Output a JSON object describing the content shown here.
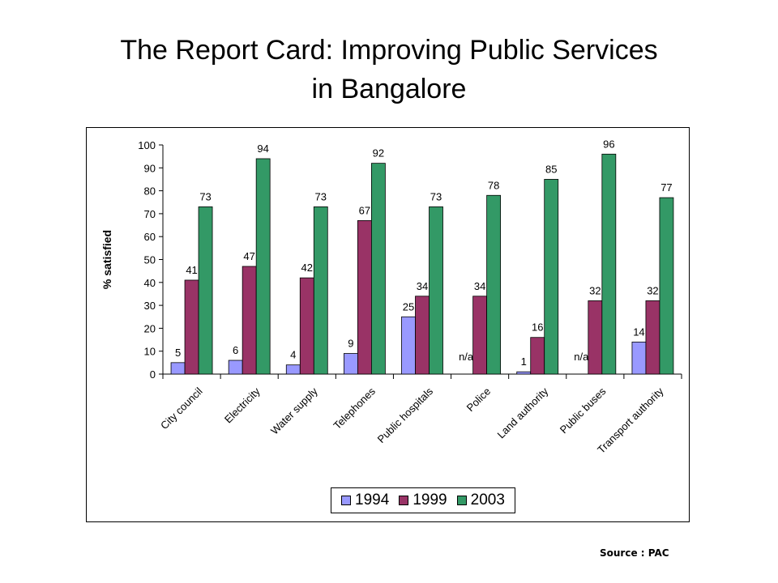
{
  "slide": {
    "title_line1": "The Report Card:  Improving Public Services",
    "title_line2": "in Bangalore",
    "source": "Source : PAC"
  },
  "chart_data": {
    "type": "bar",
    "ylabel": "% satisfied",
    "xlabel": "",
    "ylim": [
      0,
      100
    ],
    "yticks": [
      0,
      10,
      20,
      30,
      40,
      50,
      60,
      70,
      80,
      90,
      100
    ],
    "grid": false,
    "legend_position": "bottom",
    "categories": [
      "City council",
      "Electricity",
      "Water supply",
      "Telephones",
      "Public hospitals",
      "Police",
      "Land authority",
      "Public buses",
      "Transport authority"
    ],
    "series": [
      {
        "name": "1994",
        "color": "#9999ff",
        "values": [
          5,
          6,
          4,
          9,
          25,
          null,
          1,
          null,
          14
        ],
        "labels": [
          "5",
          "6",
          "4",
          "9",
          "25",
          "n/a",
          "1",
          "n/a",
          "14"
        ]
      },
      {
        "name": "1999",
        "color": "#993366",
        "values": [
          41,
          47,
          42,
          67,
          34,
          34,
          16,
          32,
          32
        ],
        "labels": [
          "41",
          "47",
          "42",
          "67",
          "34",
          "34",
          "16",
          "32",
          "32"
        ]
      },
      {
        "name": "2003",
        "color": "#339966",
        "values": [
          73,
          94,
          73,
          92,
          73,
          78,
          85,
          96,
          77
        ],
        "labels": [
          "73",
          "94",
          "73",
          "92",
          "73",
          "78",
          "85",
          "96",
          "77"
        ]
      }
    ]
  }
}
